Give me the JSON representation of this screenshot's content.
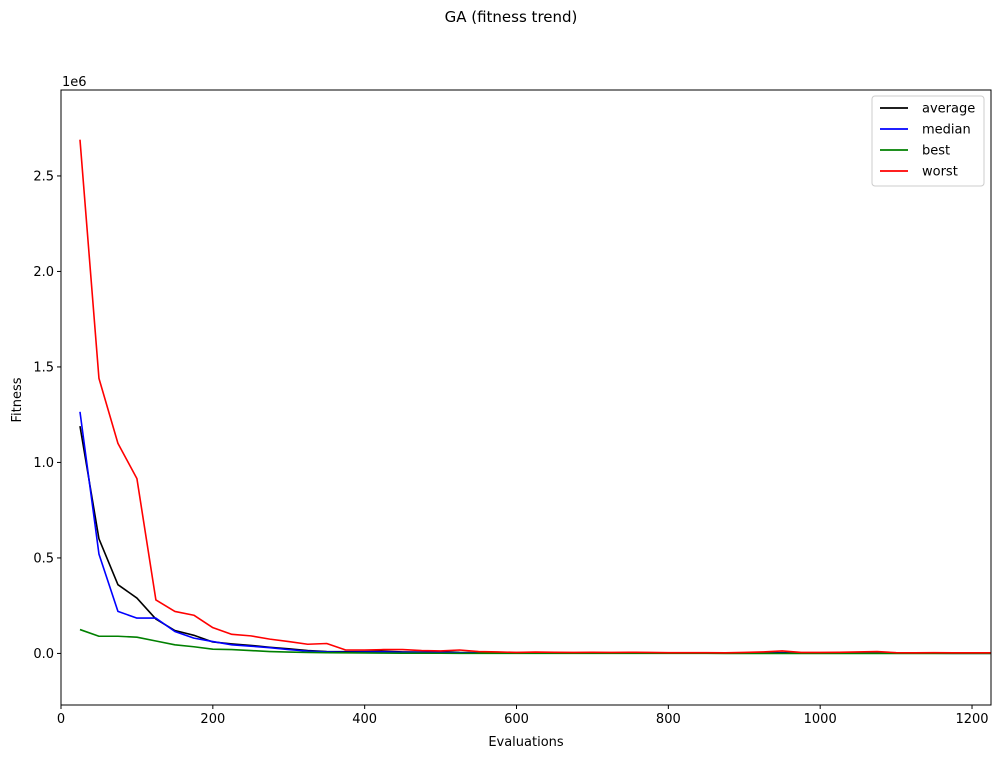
{
  "chart_data": {
    "type": "line",
    "title": "GA (fitness trend)",
    "xlabel": "Evaluations",
    "ylabel": "Fitness",
    "y_offset_label": "1e6",
    "xlim": [
      0,
      1225
    ],
    "ylim": [
      -270000,
      2950000
    ],
    "x_ticks": [
      0,
      200,
      400,
      600,
      800,
      1000,
      1200
    ],
    "x_tick_labels": [
      "0",
      "200",
      "400",
      "600",
      "800",
      "1000",
      "1200"
    ],
    "y_ticks": [
      0,
      500000,
      1000000,
      1500000,
      2000000,
      2500000
    ],
    "y_tick_labels": [
      "0.0",
      "0.5",
      "1.0",
      "1.5",
      "2.0",
      "2.5"
    ],
    "grid": false,
    "legend_position": "top-right",
    "x": [
      25,
      50,
      75,
      100,
      125,
      150,
      175,
      200,
      225,
      250,
      275,
      300,
      325,
      350,
      375,
      400,
      425,
      450,
      475,
      500,
      525,
      550,
      575,
      600,
      625,
      650,
      675,
      700,
      725,
      750,
      775,
      800,
      825,
      850,
      875,
      900,
      925,
      950,
      975,
      1000,
      1025,
      1050,
      1075,
      1100,
      1125,
      1150,
      1175,
      1200,
      1225
    ],
    "series": [
      {
        "name": "average",
        "color": "#000000",
        "values": [
          1190000,
          600000,
          360000,
          290000,
          180000,
          120000,
          95000,
          60000,
          50000,
          42000,
          32000,
          24000,
          15000,
          10000,
          9000,
          10000,
          11000,
          8000,
          7000,
          9000,
          5000,
          4000,
          3000,
          4000,
          3000,
          3000,
          3000,
          3000,
          2000,
          3000,
          2000,
          2000,
          2000,
          2000,
          1500,
          2000,
          3000,
          4000,
          2000,
          2000,
          2000,
          3000,
          4000,
          1500,
          1500,
          1500,
          1000,
          1000,
          1000
        ]
      },
      {
        "name": "median",
        "color": "#0000ff",
        "values": [
          1265000,
          520000,
          220000,
          185000,
          185000,
          115000,
          80000,
          62000,
          45000,
          38000,
          30000,
          20000,
          12000,
          8000,
          6000,
          7000,
          8000,
          6000,
          5000,
          5000,
          3000,
          2500,
          2000,
          2000,
          2000,
          2000,
          2000,
          2000,
          1500,
          2000,
          1500,
          1500,
          1500,
          1500,
          1000,
          1500,
          2000,
          2000,
          1500,
          1500,
          1500,
          2000,
          2000,
          1000,
          1000,
          1000,
          800,
          800,
          800
        ]
      },
      {
        "name": "best",
        "color": "#008000",
        "values": [
          125000,
          90000,
          90000,
          85000,
          65000,
          45000,
          35000,
          22000,
          20000,
          15000,
          10000,
          7000,
          5000,
          4000,
          3000,
          2500,
          2000,
          1500,
          1200,
          1000,
          800,
          700,
          600,
          500,
          500,
          400,
          400,
          400,
          300,
          300,
          300,
          300,
          300,
          300,
          200,
          200,
          200,
          200,
          200,
          200,
          200,
          200,
          200,
          150,
          150,
          150,
          150,
          150,
          150
        ]
      },
      {
        "name": "worst",
        "color": "#ff0000",
        "values": [
          2690000,
          1440000,
          1100000,
          915000,
          280000,
          220000,
          200000,
          135000,
          100000,
          92000,
          75000,
          62000,
          48000,
          52000,
          18000,
          18000,
          20000,
          20000,
          15000,
          13000,
          18000,
          10000,
          8000,
          5000,
          7000,
          6000,
          5000,
          6000,
          5000,
          6000,
          5000,
          4000,
          4000,
          4000,
          3000,
          5000,
          8000,
          13000,
          5000,
          5000,
          6000,
          8000,
          10000,
          4000,
          3000,
          4000,
          3000,
          3000,
          3000
        ]
      }
    ]
  }
}
